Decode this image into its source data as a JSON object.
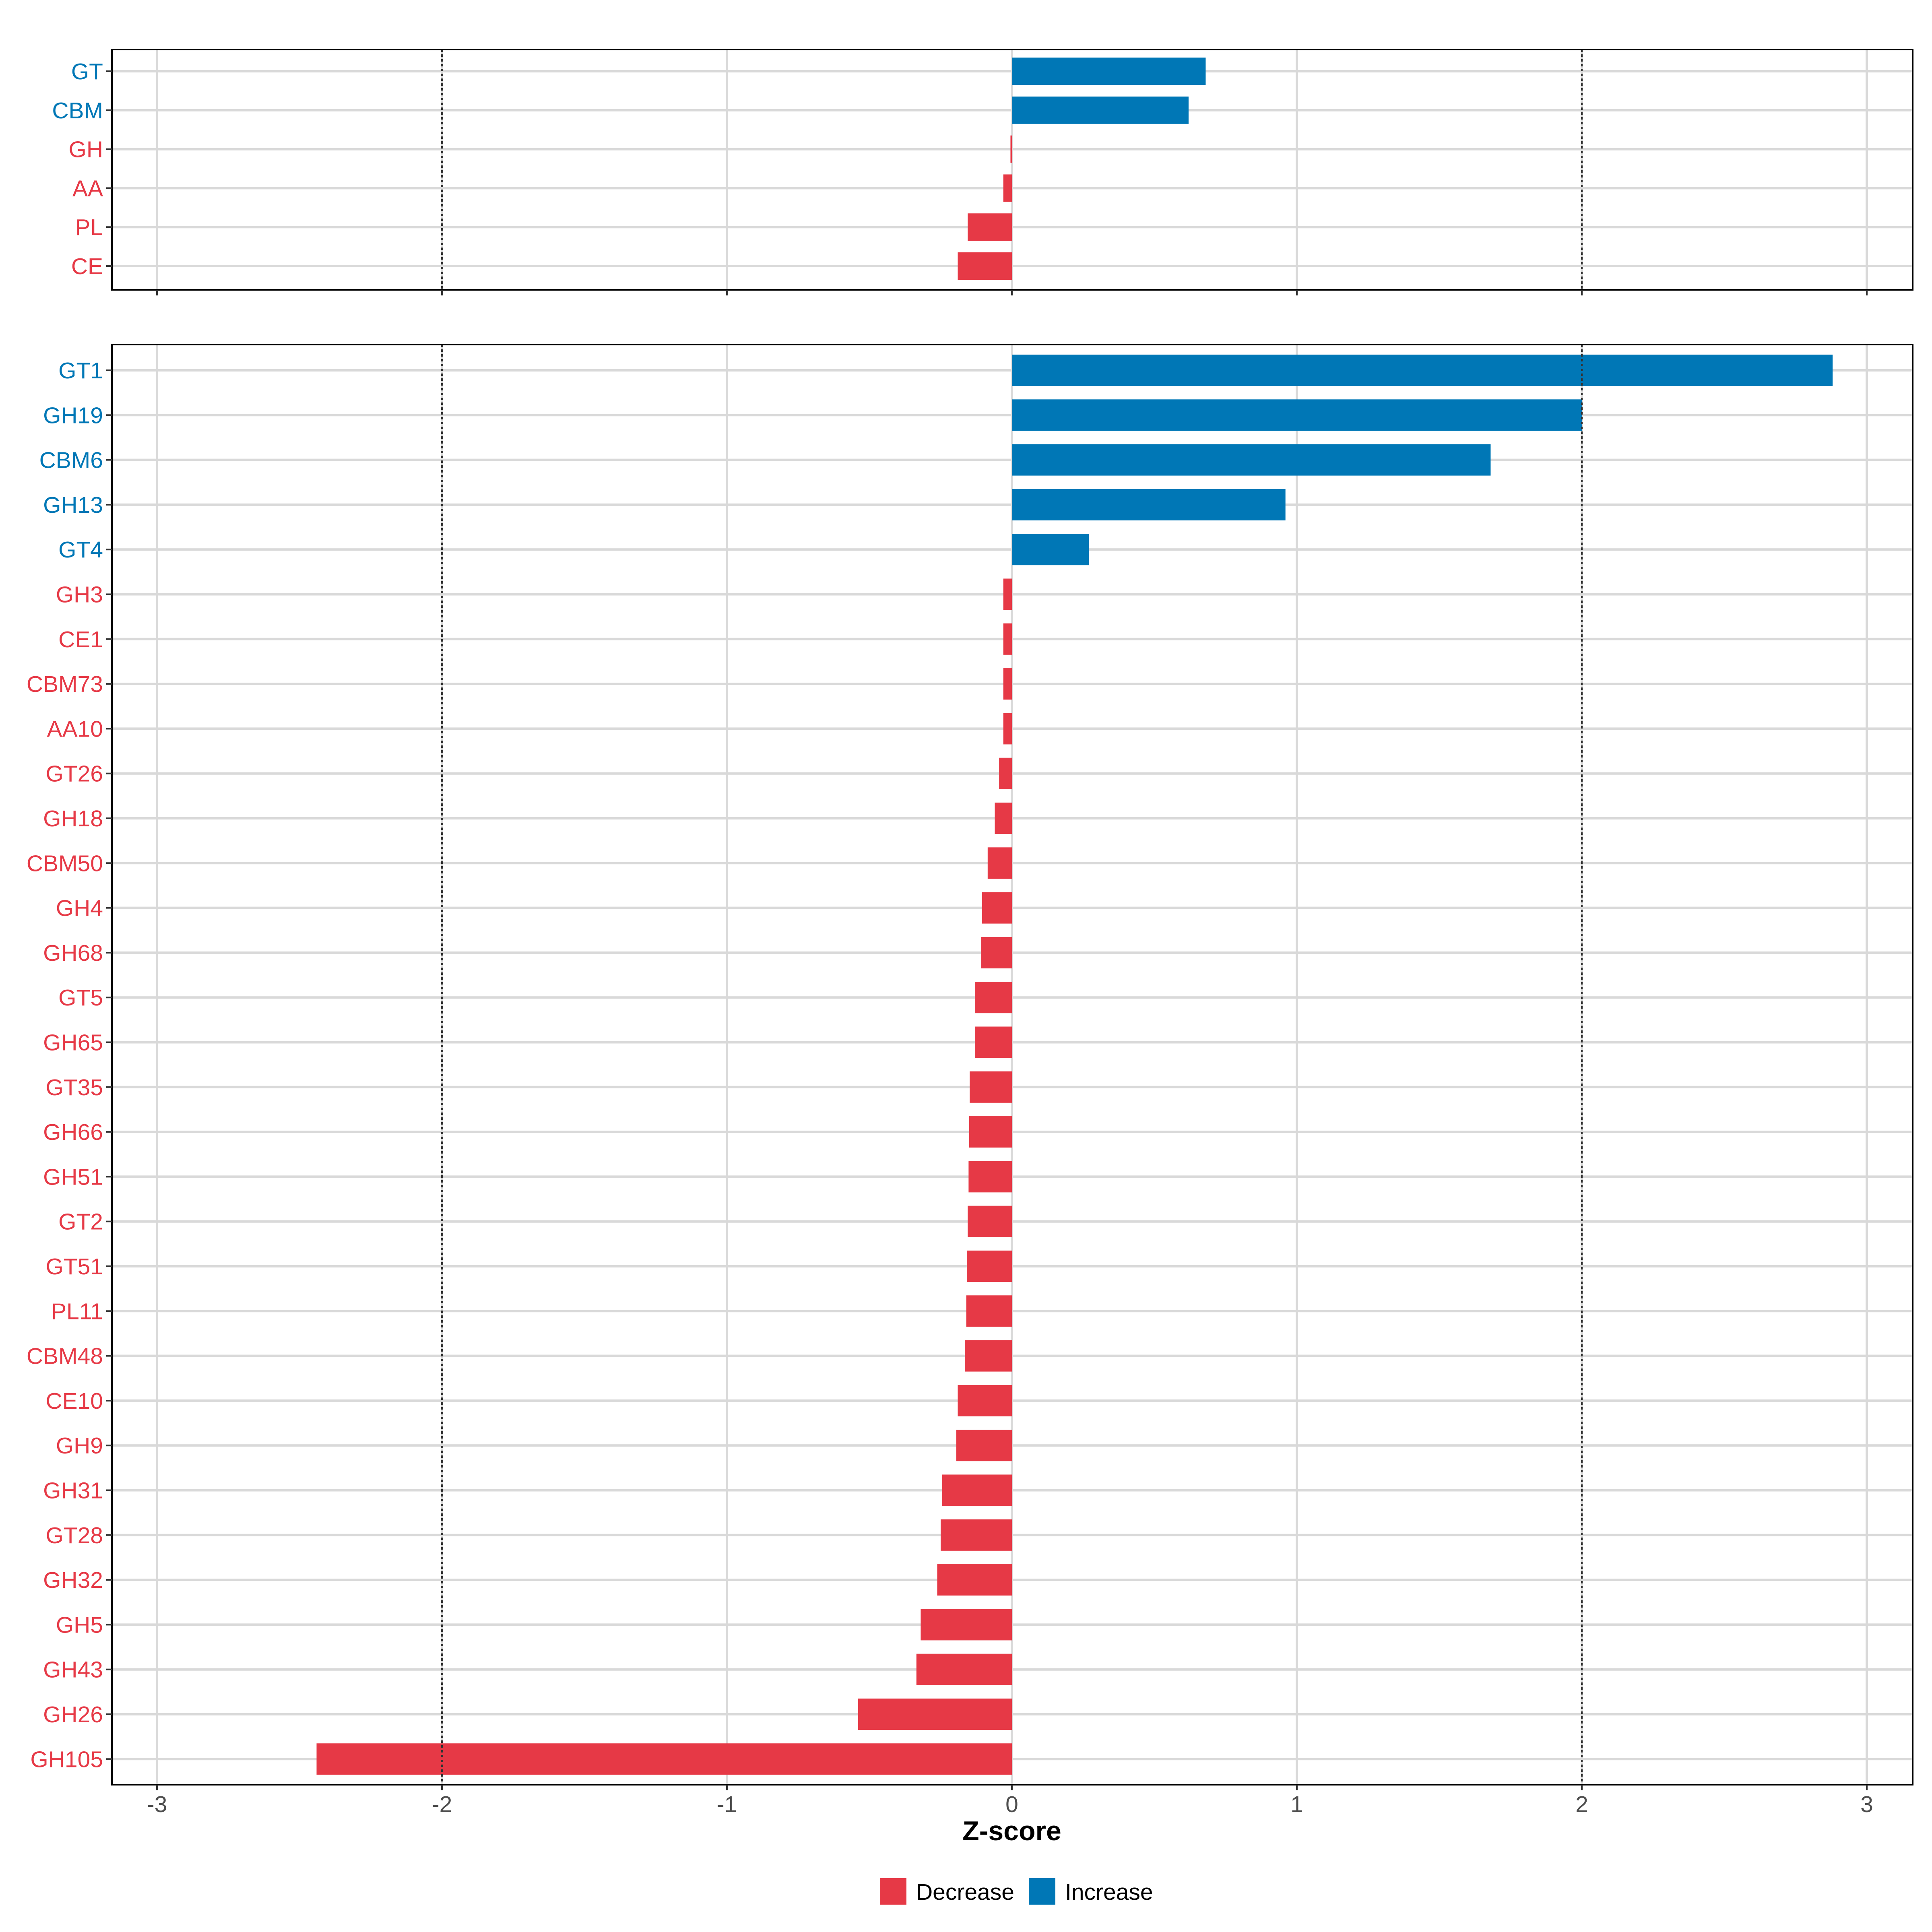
{
  "chart_data": [
    {
      "type": "bar",
      "orientation": "horizontal",
      "panel": "top",
      "categories": [
        "GT",
        "CBM",
        "GH",
        "AA",
        "PL",
        "CE"
      ],
      "values": [
        0.68,
        0.62,
        -0.005,
        -0.03,
        -0.155,
        -0.19
      ],
      "xlim": [
        -3.16,
        3.16
      ],
      "reference_lines": [
        -2,
        2
      ],
      "grid": true
    },
    {
      "type": "bar",
      "orientation": "horizontal",
      "panel": "bottom",
      "categories": [
        "GT1",
        "GH19",
        "CBM6",
        "GH13",
        "GT4",
        "GH3",
        "CE1",
        "CBM73",
        "AA10",
        "GT26",
        "GH18",
        "CBM50",
        "GH4",
        "GH68",
        "GT5",
        "GH65",
        "GT35",
        "GH66",
        "GH51",
        "GT2",
        "GT51",
        "PL11",
        "CBM48",
        "CE10",
        "GH9",
        "GH31",
        "GT28",
        "GH32",
        "GH5",
        "GH43",
        "GH26",
        "GH105"
      ],
      "values": [
        2.88,
        2.0,
        1.68,
        0.96,
        0.27,
        -0.03,
        -0.03,
        -0.03,
        -0.03,
        -0.045,
        -0.06,
        -0.085,
        -0.105,
        -0.108,
        -0.13,
        -0.13,
        -0.148,
        -0.15,
        -0.152,
        -0.155,
        -0.158,
        -0.16,
        -0.165,
        -0.19,
        -0.195,
        -0.245,
        -0.25,
        -0.262,
        -0.32,
        -0.335,
        -0.54,
        -2.44
      ],
      "xlim": [
        -3.16,
        3.16
      ],
      "x_ticks": [
        -3,
        -2,
        -1,
        0,
        1,
        2,
        3
      ],
      "x_tick_labels": [
        "-3",
        "-2",
        "-1",
        "0",
        "1",
        "2",
        "3"
      ],
      "reference_lines": [
        -2,
        2
      ],
      "xlabel": "Z-score",
      "grid": true
    }
  ],
  "legend": {
    "placement": "bottom",
    "items": [
      {
        "label": "Decrease",
        "color": "#E63946"
      },
      {
        "label": "Increase",
        "color": "#0077B6"
      }
    ]
  },
  "colors": {
    "increase": "#0077B6",
    "decrease": "#E63946",
    "grid": "#d9d9d9",
    "reference": "#333333",
    "frame": "#000000"
  }
}
